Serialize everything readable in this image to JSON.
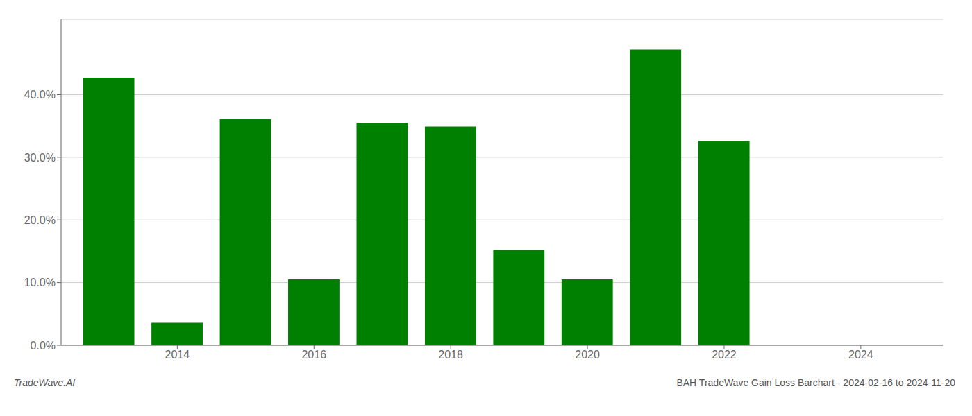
{
  "chart_data": {
    "type": "bar",
    "title": "BAH TradeWave Gain Loss Barchart - 2024-02-16 to 2024-11-20",
    "annotations": [
      "TradeWave.AI"
    ],
    "x": [
      2013,
      2014,
      2015,
      2016,
      2017,
      2018,
      2019,
      2020,
      2021,
      2022
    ],
    "values": [
      0.427,
      0.036,
      0.361,
      0.105,
      0.355,
      0.349,
      0.152,
      0.105,
      0.472,
      0.326
    ],
    "color": "#008000",
    "xlim": [
      2012.3,
      2025.2
    ],
    "xticks": [
      2014,
      2016,
      2018,
      2020,
      2022,
      2024
    ],
    "ylim": [
      0,
      0.52
    ],
    "yticks": [
      {
        "value": 0.0,
        "label": "0.0%"
      },
      {
        "value": 0.1,
        "label": "10.0%"
      },
      {
        "value": 0.2,
        "label": "20.0%"
      },
      {
        "value": 0.3,
        "label": "30.0%"
      },
      {
        "value": 0.4,
        "label": "40.0%"
      }
    ],
    "grid": true
  }
}
